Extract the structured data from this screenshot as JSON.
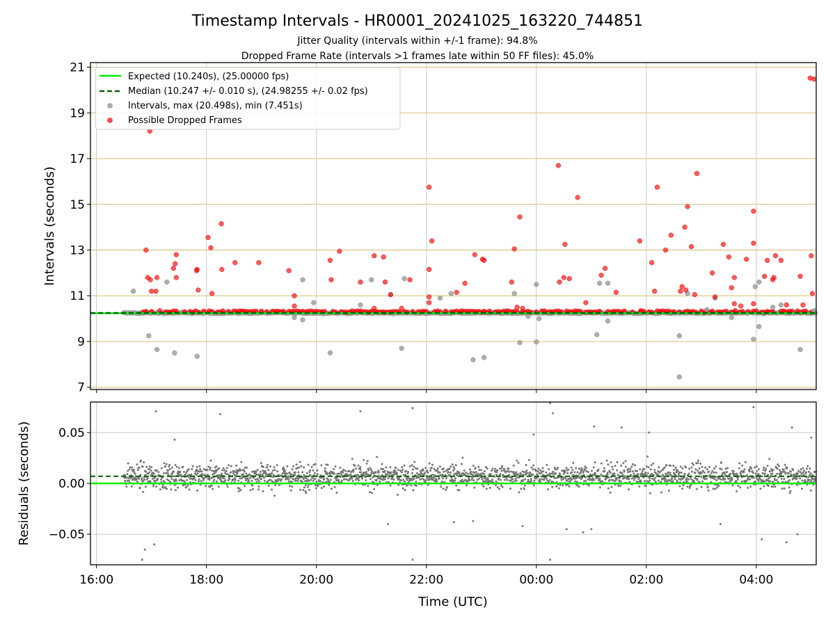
{
  "figure": {
    "title": "Timestamp Intervals - HR0001_20241025_163220_744851",
    "subtitle_1": "Jitter Quality (intervals within +/-1 frame): 94.8%",
    "subtitle_2": "Dropped Frame Rate (intervals >1 frames late within 50 FF files): 45.0%"
  },
  "colors": {
    "expected": "#00ee00",
    "median": "#006400",
    "intervals": "#a0a0a0",
    "dropped": "#ff0000",
    "residuals": "#777777",
    "hgrid_top": "#d4bc70",
    "grid": "#c8c8c8"
  },
  "chart_data": [
    {
      "type": "scatter",
      "name": "intervals-panel",
      "ylabel": "Intervals (seconds)",
      "ylim": [
        6.9,
        21.2
      ],
      "yticks": [
        7,
        9,
        11,
        13,
        15,
        17,
        19,
        21
      ],
      "xlim_hours": [
        15.89,
        29.09
      ],
      "xticks_hours": [
        16,
        18,
        20,
        22,
        24,
        26,
        28
      ],
      "xtick_labels": [
        "16:00",
        "18:00",
        "20:00",
        "22:00",
        "00:00",
        "02:00",
        "04:00"
      ],
      "grid": true,
      "legend_position": "top-left",
      "legend": [
        "Expected (10.240s), (25.00000 fps)",
        "Median (10.247 +/- 0.010 s), (24.98255 +/- 0.02 fps)",
        "Intervals, max (20.498s), min (7.451s)",
        "Possible Dropped Frames"
      ],
      "expected": 10.24,
      "median": 10.247,
      "data_start_hours": 16.5,
      "baseline_interval": 10.247,
      "interval_outliers": [
        [
          16.67,
          11.2
        ],
        [
          16.95,
          9.25
        ],
        [
          17.1,
          8.65
        ],
        [
          17.28,
          11.6
        ],
        [
          17.42,
          8.5
        ],
        [
          17.83,
          8.35
        ],
        [
          19.6,
          10.05
        ],
        [
          19.75,
          11.7
        ],
        [
          19.75,
          9.95
        ],
        [
          19.95,
          10.7
        ],
        [
          20.25,
          8.5
        ],
        [
          20.8,
          10.6
        ],
        [
          21.0,
          11.7
        ],
        [
          21.35,
          11.05
        ],
        [
          21.55,
          8.7
        ],
        [
          21.6,
          11.75
        ],
        [
          22.25,
          10.9
        ],
        [
          22.45,
          11.1
        ],
        [
          22.85,
          8.2
        ],
        [
          23.05,
          8.3
        ],
        [
          23.6,
          11.1
        ],
        [
          23.7,
          8.95
        ],
        [
          23.85,
          10.1
        ],
        [
          24.0,
          8.98
        ],
        [
          24.0,
          11.5
        ],
        [
          24.05,
          10.0
        ],
        [
          25.1,
          9.3
        ],
        [
          25.15,
          11.55
        ],
        [
          25.3,
          11.55
        ],
        [
          25.3,
          9.9
        ],
        [
          26.6,
          7.45
        ],
        [
          26.6,
          9.25
        ],
        [
          26.75,
          11.1
        ],
        [
          27.1,
          10.4
        ],
        [
          27.25,
          10.9
        ],
        [
          27.55,
          10.05
        ],
        [
          27.95,
          9.1
        ],
        [
          27.98,
          11.4
        ],
        [
          28.05,
          9.65
        ],
        [
          28.05,
          11.6
        ],
        [
          28.3,
          10.5
        ],
        [
          28.45,
          10.6
        ],
        [
          28.8,
          8.65
        ],
        [
          29.05,
          10.35
        ]
      ],
      "dropped_outliers": [
        [
          16.9,
          13.0
        ],
        [
          16.93,
          11.8
        ],
        [
          16.97,
          18.2
        ],
        [
          16.98,
          11.7
        ],
        [
          17.0,
          11.2
        ],
        [
          17.08,
          11.2
        ],
        [
          17.1,
          11.8
        ],
        [
          17.4,
          12.2
        ],
        [
          17.43,
          12.4
        ],
        [
          17.45,
          12.8
        ],
        [
          17.45,
          11.8
        ],
        [
          17.82,
          12.1
        ],
        [
          17.85,
          11.25
        ],
        [
          17.83,
          12.15
        ],
        [
          18.03,
          13.55
        ],
        [
          18.08,
          13.1
        ],
        [
          18.1,
          11.1
        ],
        [
          18.27,
          14.15
        ],
        [
          18.28,
          12.15
        ],
        [
          18.52,
          12.45
        ],
        [
          18.95,
          12.45
        ],
        [
          19.5,
          12.1
        ],
        [
          19.6,
          11.0
        ],
        [
          19.6,
          10.55
        ],
        [
          20.25,
          12.55
        ],
        [
          20.27,
          11.7
        ],
        [
          20.42,
          12.95
        ],
        [
          20.8,
          11.6
        ],
        [
          21.05,
          12.75
        ],
        [
          21.05,
          10.45
        ],
        [
          21.22,
          12.7
        ],
        [
          21.25,
          11.6
        ],
        [
          21.35,
          11.05
        ],
        [
          21.7,
          11.7
        ],
        [
          22.05,
          15.75
        ],
        [
          22.05,
          12.15
        ],
        [
          22.05,
          10.95
        ],
        [
          22.05,
          10.7
        ],
        [
          22.1,
          13.4
        ],
        [
          22.55,
          11.15
        ],
        [
          22.7,
          11.55
        ],
        [
          22.88,
          12.8
        ],
        [
          23.02,
          12.6
        ],
        [
          23.05,
          12.55
        ],
        [
          23.55,
          11.6
        ],
        [
          23.6,
          13.05
        ],
        [
          23.65,
          10.5
        ],
        [
          23.7,
          14.45
        ],
        [
          23.75,
          10.45
        ],
        [
          24.4,
          16.7
        ],
        [
          24.42,
          11.6
        ],
        [
          24.5,
          11.8
        ],
        [
          24.52,
          13.25
        ],
        [
          24.6,
          11.75
        ],
        [
          24.75,
          15.3
        ],
        [
          24.9,
          10.7
        ],
        [
          25.18,
          11.9
        ],
        [
          25.25,
          12.2
        ],
        [
          25.45,
          11.15
        ],
        [
          25.88,
          13.4
        ],
        [
          25.9,
          10.35
        ],
        [
          26.1,
          12.45
        ],
        [
          26.15,
          11.2
        ],
        [
          26.2,
          15.75
        ],
        [
          26.35,
          13.0
        ],
        [
          26.45,
          13.65
        ],
        [
          26.62,
          11.2
        ],
        [
          26.65,
          11.4
        ],
        [
          26.7,
          14.0
        ],
        [
          26.72,
          11.25
        ],
        [
          26.75,
          14.9
        ],
        [
          26.82,
          13.15
        ],
        [
          26.88,
          11.05
        ],
        [
          26.92,
          16.35
        ],
        [
          27.2,
          12.0
        ],
        [
          27.25,
          10.95
        ],
        [
          27.4,
          13.25
        ],
        [
          27.5,
          12.7
        ],
        [
          27.55,
          11.35
        ],
        [
          27.6,
          11.8
        ],
        [
          27.6,
          10.65
        ],
        [
          27.62,
          10.35
        ],
        [
          27.72,
          10.55
        ],
        [
          27.82,
          12.6
        ],
        [
          27.95,
          14.7
        ],
        [
          27.95,
          13.3
        ],
        [
          27.95,
          10.65
        ],
        [
          28.15,
          11.85
        ],
        [
          28.2,
          12.55
        ],
        [
          28.35,
          12.75
        ],
        [
          28.45,
          12.55
        ],
        [
          28.55,
          10.6
        ],
        [
          28.8,
          11.85
        ],
        [
          28.85,
          10.6
        ],
        [
          28.98,
          20.52
        ],
        [
          29.05,
          20.48
        ],
        [
          29.0,
          12.75
        ],
        [
          29.02,
          11.1
        ],
        [
          28.32,
          11.8
        ],
        [
          28.3,
          11.7
        ],
        [
          21.55,
          10.45
        ],
        [
          17.15,
          10.35
        ]
      ]
    },
    {
      "type": "scatter",
      "name": "residuals-panel",
      "ylabel": "Residuals (seconds)",
      "xlabel": "Time (UTC)",
      "ylim": [
        -0.08,
        0.08
      ],
      "yticks": [
        0.05,
        0.0,
        -0.05
      ],
      "ytick_labels": [
        "0.05",
        "0.00",
        "−0.05"
      ],
      "xlim_hours": [
        15.89,
        29.09
      ],
      "xticks_hours": [
        16,
        18,
        20,
        22,
        24,
        26,
        28
      ],
      "xtick_labels": [
        "16:00",
        "18:00",
        "20:00",
        "22:00",
        "00:00",
        "02:00",
        "04:00"
      ],
      "grid": true,
      "expected_residual": 0.0,
      "median_residual": 0.007,
      "residual_outliers": [
        [
          16.83,
          -0.075
        ],
        [
          17.05,
          -0.06
        ],
        [
          17.08,
          0.071
        ],
        [
          18.25,
          0.068
        ],
        [
          20.8,
          0.071
        ],
        [
          21.3,
          -0.04
        ],
        [
          21.75,
          0.074
        ],
        [
          21.75,
          -0.075
        ],
        [
          22.5,
          -0.038
        ],
        [
          22.85,
          -0.037
        ],
        [
          23.75,
          -0.042
        ],
        [
          24.25,
          0.079
        ],
        [
          24.3,
          0.069
        ],
        [
          24.25,
          -0.075
        ],
        [
          24.55,
          -0.045
        ],
        [
          24.85,
          -0.048
        ],
        [
          25.0,
          -0.045
        ],
        [
          25.05,
          0.056
        ],
        [
          25.55,
          0.055
        ],
        [
          26.05,
          0.05
        ],
        [
          27.35,
          -0.04
        ],
        [
          27.95,
          0.075
        ],
        [
          28.1,
          -0.055
        ],
        [
          28.55,
          -0.058
        ],
        [
          28.65,
          0.055
        ],
        [
          28.75,
          -0.05
        ],
        [
          29.0,
          0.045
        ],
        [
          16.88,
          -0.065
        ],
        [
          17.42,
          0.043
        ],
        [
          23.95,
          0.048
        ]
      ]
    }
  ]
}
